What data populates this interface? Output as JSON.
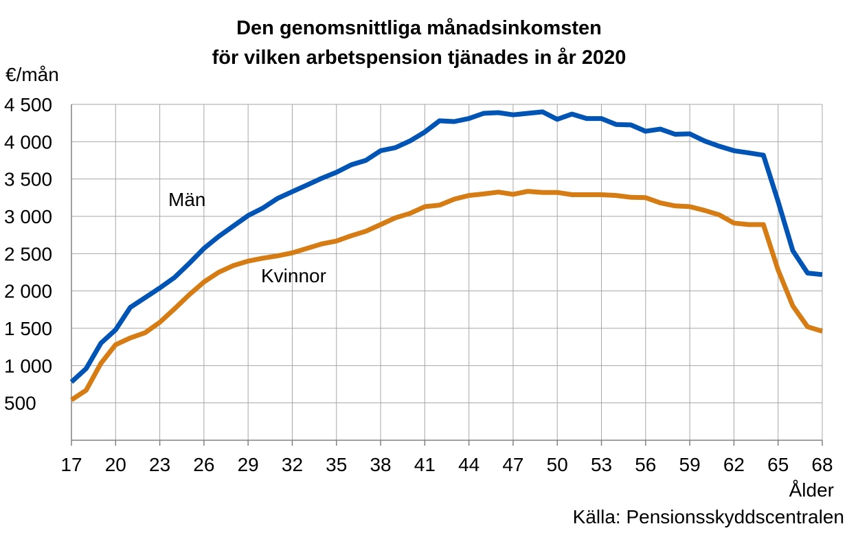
{
  "chart_data": {
    "type": "line",
    "title": "Den genomsnittliga månadsinkomsten",
    "subtitle": "för vilken arbetspension tjänades in år 2020",
    "ylabel": "€/mån",
    "xlabel": "Ålder",
    "source": "Källa: Pensionsskyddscentralen",
    "ylim": [
      0,
      4500
    ],
    "xlim": [
      17,
      68
    ],
    "y_ticks": [
      500,
      1000,
      1500,
      2000,
      2500,
      3000,
      3500,
      4000,
      4500
    ],
    "y_tick_labels": [
      "500",
      "1 000",
      "1 500",
      "2 000",
      "2 500",
      "3 000",
      "3 500",
      "4 000",
      "4 500"
    ],
    "x_ticks": [
      17,
      20,
      23,
      26,
      29,
      32,
      35,
      38,
      41,
      44,
      47,
      50,
      53,
      56,
      59,
      62,
      65,
      68
    ],
    "x_tick_labels": [
      "17",
      "20",
      "23",
      "26",
      "29",
      "32",
      "35",
      "38",
      "41",
      "44",
      "47",
      "50",
      "53",
      "56",
      "59",
      "62",
      "65",
      "68"
    ],
    "grid": true,
    "x": [
      17,
      18,
      19,
      20,
      21,
      22,
      23,
      24,
      25,
      26,
      27,
      28,
      29,
      30,
      31,
      32,
      33,
      34,
      35,
      36,
      37,
      38,
      39,
      40,
      41,
      42,
      43,
      44,
      45,
      46,
      47,
      48,
      49,
      50,
      51,
      52,
      53,
      54,
      55,
      56,
      57,
      58,
      59,
      60,
      61,
      62,
      63,
      64,
      65,
      66,
      67,
      68
    ],
    "series": [
      {
        "name": "Män",
        "color": "#0054b4",
        "values": [
          780,
          960,
          1300,
          1480,
          1780,
          1910,
          2040,
          2180,
          2370,
          2570,
          2730,
          2870,
          3010,
          3110,
          3240,
          3330,
          3420,
          3510,
          3590,
          3690,
          3750,
          3880,
          3920,
          4010,
          4130,
          4280,
          4270,
          4310,
          4380,
          4390,
          4360,
          4380,
          4400,
          4300,
          4370,
          4310,
          4310,
          4230,
          4225,
          4140,
          4170,
          4100,
          4105,
          4010,
          3940,
          3880,
          3850,
          3820,
          3200,
          2540,
          2240,
          2220
        ]
      },
      {
        "name": "Kvinnor",
        "color": "#d67c15",
        "values": [
          540,
          670,
          1030,
          1280,
          1370,
          1440,
          1580,
          1760,
          1950,
          2120,
          2250,
          2340,
          2400,
          2440,
          2470,
          2510,
          2570,
          2630,
          2670,
          2740,
          2800,
          2890,
          2980,
          3040,
          3130,
          3150,
          3230,
          3280,
          3300,
          3325,
          3295,
          3335,
          3320,
          3320,
          3290,
          3290,
          3290,
          3280,
          3255,
          3250,
          3180,
          3140,
          3130,
          3080,
          3020,
          2910,
          2890,
          2890,
          2280,
          1800,
          1520,
          1460
        ]
      }
    ]
  }
}
